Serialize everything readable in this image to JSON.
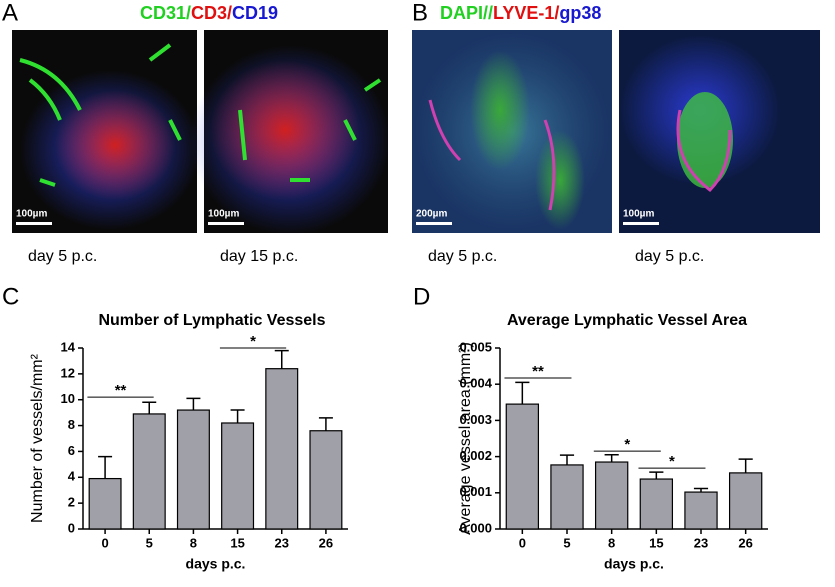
{
  "panels": [
    {
      "letter": "A",
      "stain_label": [
        {
          "text": "CD31/",
          "color": "#22d022"
        },
        {
          "text": "CD3/",
          "color": "#e01010"
        },
        {
          "text": "CD19",
          "color": "#1818d0"
        }
      ],
      "images": [
        {
          "scale_bar": "100µm",
          "caption": "day 5 p.c."
        },
        {
          "scale_bar": "100µm",
          "caption": "day 15 p.c."
        }
      ]
    },
    {
      "letter": "B",
      "stain_label": [
        {
          "text": "DAPI//",
          "color": "#22d022"
        },
        {
          "text": "LYVE-1/",
          "color": "#e01010"
        },
        {
          "text": "gp38",
          "color": "#1818d0"
        }
      ],
      "images": [
        {
          "scale_bar": "200µm",
          "caption": "day 5 p.c."
        },
        {
          "scale_bar": "100µm",
          "caption": "day 5 p.c."
        }
      ]
    }
  ],
  "chart_data": [
    {
      "type": "bar",
      "letter": "C",
      "title": "Number of Lymphatic Vessels",
      "x_label": "days p.c.",
      "y_label": "Number of vessels/mm²",
      "categories": [
        "0",
        "5",
        "8",
        "15",
        "23",
        "26"
      ],
      "values": [
        3.9,
        8.9,
        9.2,
        8.2,
        12.4,
        7.6
      ],
      "errors": [
        1.7,
        0.9,
        0.9,
        1.0,
        1.4,
        1.0
      ],
      "color": "#a0a0a8",
      "ylim": [
        0,
        14
      ],
      "yticks": [
        0,
        2,
        4,
        6,
        8,
        10,
        12,
        14
      ],
      "annotations": [
        {
          "text": "**",
          "from": "0",
          "to": "5",
          "y": 10.2
        },
        {
          "text": "*",
          "from": "15",
          "to": "23",
          "y": 14.0
        }
      ]
    },
    {
      "type": "bar",
      "letter": "D",
      "title": "Average Lymphatic Vessel Area",
      "x_label": "days p.c.",
      "y_label": "Average vessel area (mm²)",
      "categories": [
        "0",
        "5",
        "8",
        "15",
        "23",
        "26"
      ],
      "values": [
        0.00345,
        0.00177,
        0.00185,
        0.00138,
        0.00102,
        0.00155
      ],
      "errors": [
        0.0006,
        0.00027,
        0.0002,
        0.00019,
        0.0001,
        0.00038
      ],
      "color": "#a0a0a8",
      "ylim": [
        0,
        0.005
      ],
      "yticks": [
        {
          "value": 0,
          "label": "0.000"
        },
        {
          "value": 0.001,
          "label": "0.001"
        },
        {
          "value": 0.002,
          "label": "0.002"
        },
        {
          "value": 0.003,
          "label": "0.003"
        },
        {
          "value": 0.004,
          "label": "0.004"
        },
        {
          "value": 0.005,
          "label": "0.005"
        }
      ],
      "annotations": [
        {
          "text": "**",
          "from": "0",
          "to": "5",
          "y": 0.00417
        },
        {
          "text": "*",
          "from": "8",
          "to": "15",
          "y": 0.00215
        },
        {
          "text": "*",
          "from": "15",
          "to": "23",
          "y": 0.00168
        }
      ]
    }
  ]
}
